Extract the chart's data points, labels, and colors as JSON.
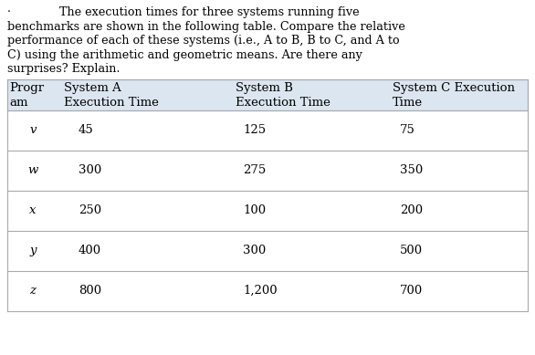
{
  "intro_line1": "·           The execution times for three systems running five",
  "intro_lines": [
    "benchmarks are shown in the following table. Compare the relative",
    "performance of each of these systems (i.e., A to B, B to C, and A to",
    "C) using the arithmetic and geometric means. Are there any",
    "surprises? Explain."
  ],
  "rows": [
    [
      "v",
      "45",
      "125",
      "75"
    ],
    [
      "w",
      "300",
      "275",
      "350"
    ],
    [
      "x",
      "250",
      "100",
      "200"
    ],
    [
      "y",
      "400",
      "300",
      "500"
    ],
    [
      "z",
      "800",
      "1,200",
      "700"
    ]
  ],
  "header_bg": "#dce6f1",
  "border_color": "#aaaaaa",
  "text_color": "#000000",
  "intro_font_size": 9.2,
  "table_font_size": 9.5,
  "fig_width": 5.86,
  "fig_height": 3.89
}
